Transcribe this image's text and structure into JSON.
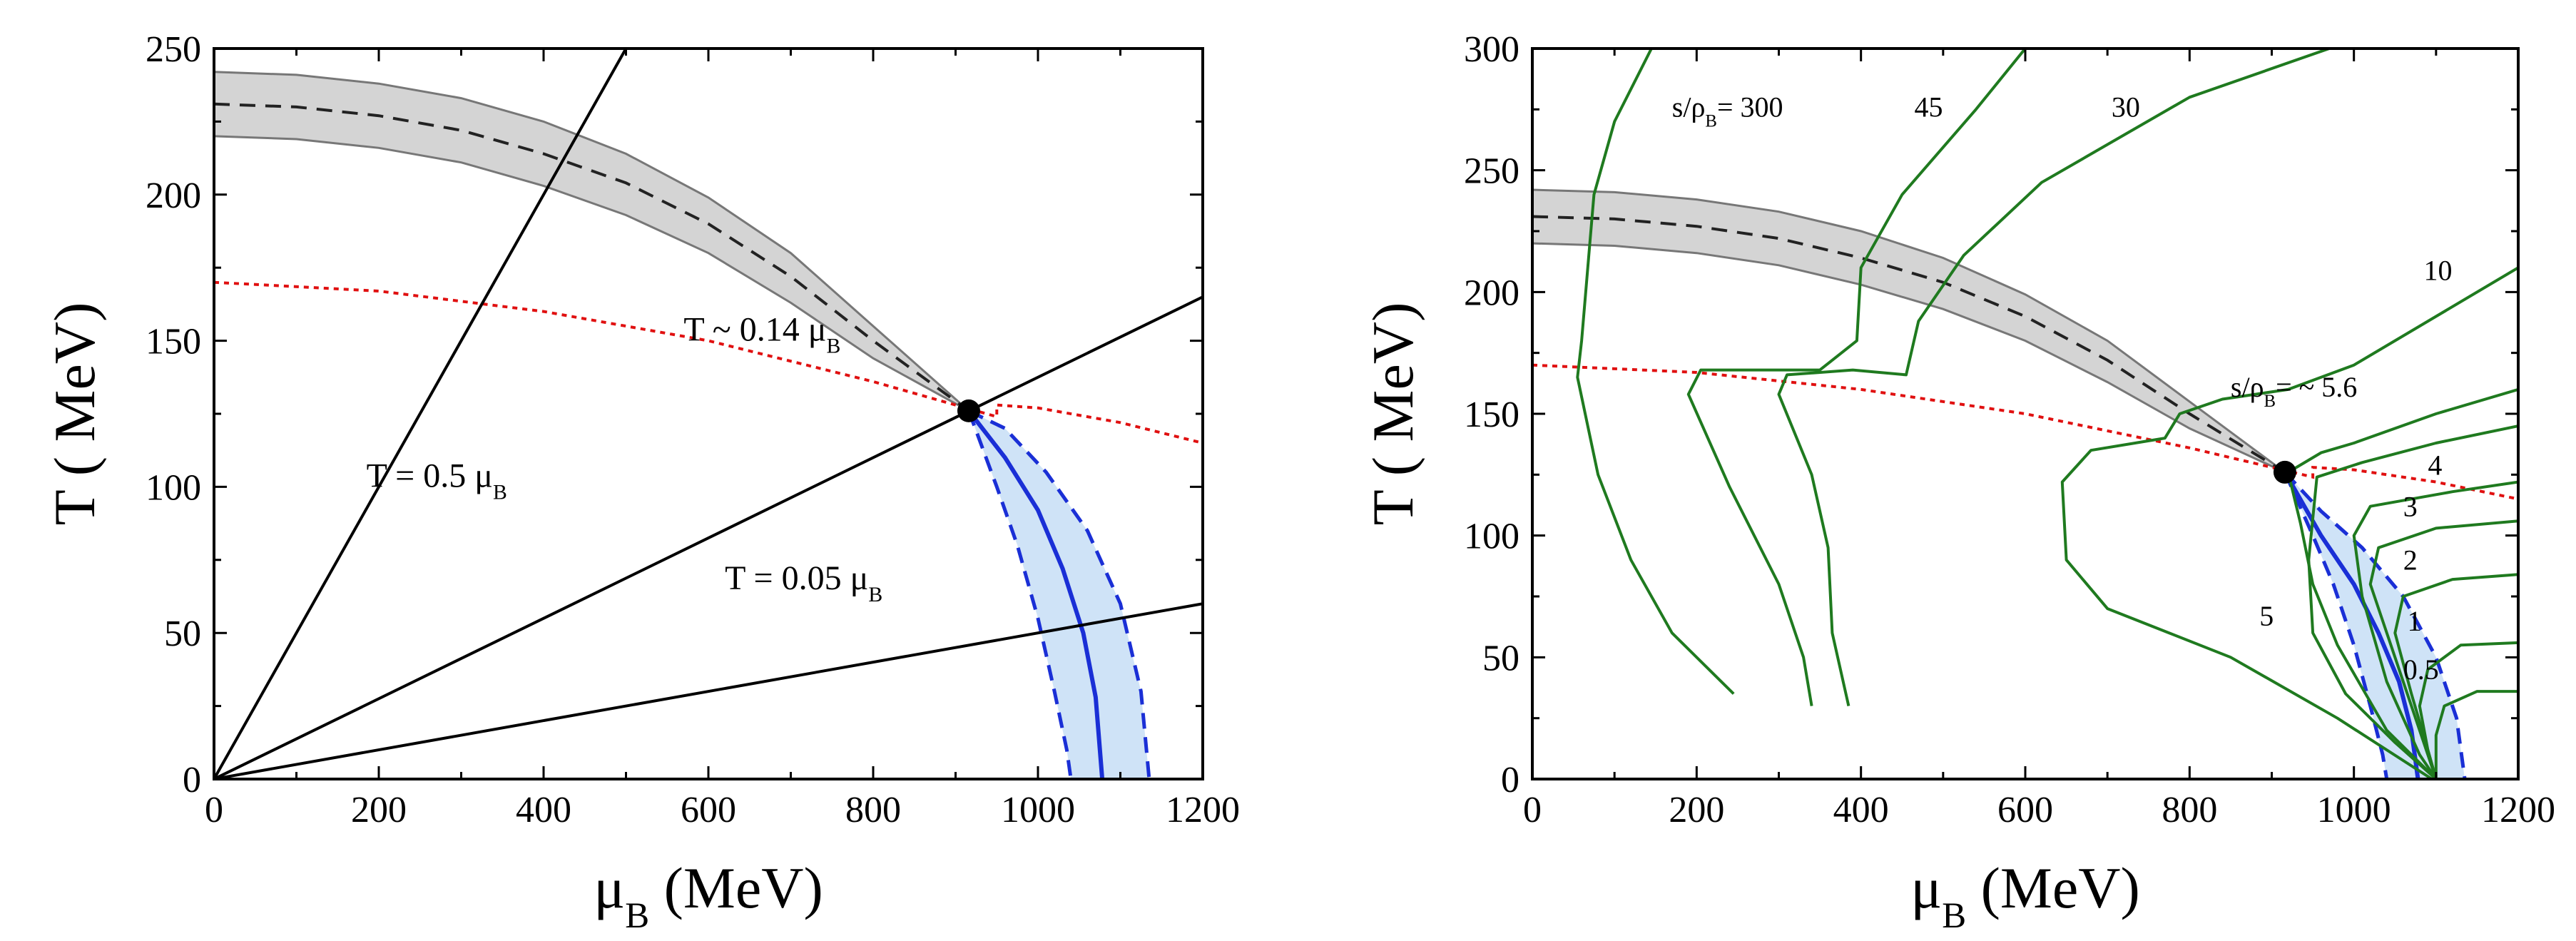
{
  "chart_data": [
    {
      "type": "line",
      "title": "",
      "xlabel": {
        "sym": "μ",
        "sub": "B",
        "unit": " (MeV)"
      },
      "ylabel": "T ( MeV)",
      "xlim": [
        0,
        1200
      ],
      "ylim": [
        0,
        250
      ],
      "xticks": [
        0,
        200,
        400,
        600,
        800,
        1000,
        1200
      ],
      "yticks": [
        0,
        50,
        100,
        150,
        200,
        250
      ],
      "grid": false,
      "critical_point": {
        "x": 916,
        "y": 126
      },
      "band": {
        "center": [
          [
            0,
            231
          ],
          [
            100,
            230
          ],
          [
            200,
            227
          ],
          [
            300,
            222
          ],
          [
            400,
            214
          ],
          [
            500,
            204
          ],
          [
            600,
            190
          ],
          [
            700,
            172
          ],
          [
            800,
            150
          ],
          [
            916,
            126
          ]
        ],
        "upper": [
          [
            0,
            242
          ],
          [
            100,
            241
          ],
          [
            200,
            238
          ],
          [
            300,
            233
          ],
          [
            400,
            225
          ],
          [
            500,
            214
          ],
          [
            600,
            199
          ],
          [
            700,
            180
          ],
          [
            800,
            155
          ],
          [
            916,
            126
          ]
        ],
        "lower": [
          [
            0,
            220
          ],
          [
            100,
            219
          ],
          [
            200,
            216
          ],
          [
            300,
            211
          ],
          [
            400,
            203
          ],
          [
            500,
            193
          ],
          [
            600,
            180
          ],
          [
            700,
            163
          ],
          [
            800,
            144
          ],
          [
            916,
            126
          ]
        ]
      },
      "red_dotted": [
        [
          0,
          170
        ],
        [
          200,
          167
        ],
        [
          400,
          160
        ],
        [
          600,
          150
        ],
        [
          800,
          136
        ],
        [
          900,
          128
        ],
        [
          950,
          124
        ],
        [
          950,
          128
        ],
        [
          1000,
          127
        ],
        [
          1100,
          122
        ],
        [
          1200,
          115
        ]
      ],
      "blue_region": {
        "center": [
          [
            916,
            126
          ],
          [
            960,
            110
          ],
          [
            1000,
            92
          ],
          [
            1030,
            72
          ],
          [
            1055,
            50
          ],
          [
            1070,
            28
          ],
          [
            1078,
            0
          ]
        ],
        "left": [
          [
            916,
            126
          ],
          [
            950,
            100
          ],
          [
            975,
            80
          ],
          [
            1000,
            55
          ],
          [
            1020,
            30
          ],
          [
            1035,
            10
          ],
          [
            1040,
            0
          ]
        ],
        "right": [
          [
            916,
            126
          ],
          [
            960,
            120
          ],
          [
            1010,
            105
          ],
          [
            1060,
            85
          ],
          [
            1100,
            60
          ],
          [
            1125,
            30
          ],
          [
            1135,
            0
          ]
        ]
      },
      "lines": [
        {
          "label": "T = 0.5 μ",
          "label_sub": "B",
          "slope": 0.5,
          "x_end": 500,
          "label_pos": [
            185,
            100
          ]
        },
        {
          "label": "T ~ 0.14 μ",
          "label_sub": "B",
          "slope": 0.1375,
          "x_end": 1200,
          "label_pos": [
            570,
            150
          ]
        },
        {
          "label": "T = 0.05 μ",
          "label_sub": "B",
          "slope": 0.05,
          "x_end": 1200,
          "label_pos": [
            620,
            65
          ]
        }
      ]
    },
    {
      "type": "line",
      "title": "",
      "xlabel": {
        "sym": "μ",
        "sub": "B",
        "unit": " (MeV)"
      },
      "ylabel": "T ( MeV)",
      "xlim": [
        0,
        1200
      ],
      "ylim": [
        0,
        300
      ],
      "xticks": [
        0,
        200,
        400,
        600,
        800,
        1000,
        1200
      ],
      "yticks": [
        0,
        50,
        100,
        150,
        200,
        250,
        300
      ],
      "grid": false,
      "critical_point": {
        "x": 916,
        "y": 126
      },
      "band": {
        "center": [
          [
            0,
            231
          ],
          [
            100,
            230
          ],
          [
            200,
            227
          ],
          [
            300,
            222
          ],
          [
            400,
            214
          ],
          [
            500,
            204
          ],
          [
            600,
            190
          ],
          [
            700,
            172
          ],
          [
            800,
            150
          ],
          [
            916,
            126
          ]
        ],
        "upper": [
          [
            0,
            242
          ],
          [
            100,
            241
          ],
          [
            200,
            238
          ],
          [
            300,
            233
          ],
          [
            400,
            225
          ],
          [
            500,
            214
          ],
          [
            600,
            199
          ],
          [
            700,
            180
          ],
          [
            800,
            155
          ],
          [
            916,
            126
          ]
        ],
        "lower": [
          [
            0,
            220
          ],
          [
            100,
            219
          ],
          [
            200,
            216
          ],
          [
            300,
            211
          ],
          [
            400,
            203
          ],
          [
            500,
            193
          ],
          [
            600,
            180
          ],
          [
            700,
            163
          ],
          [
            800,
            144
          ],
          [
            916,
            126
          ]
        ]
      },
      "red_dotted": [
        [
          0,
          170
        ],
        [
          200,
          167
        ],
        [
          400,
          160
        ],
        [
          600,
          150
        ],
        [
          800,
          136
        ],
        [
          900,
          128
        ],
        [
          950,
          124
        ],
        [
          950,
          128
        ],
        [
          1000,
          127
        ],
        [
          1100,
          122
        ],
        [
          1200,
          115
        ]
      ],
      "blue_region": {
        "center": [
          [
            916,
            126
          ],
          [
            960,
            100
          ],
          [
            1000,
            80
          ],
          [
            1030,
            60
          ],
          [
            1055,
            40
          ],
          [
            1070,
            20
          ],
          [
            1078,
            0
          ]
        ],
        "left": [
          [
            916,
            126
          ],
          [
            950,
            100
          ],
          [
            975,
            80
          ],
          [
            1000,
            55
          ],
          [
            1020,
            30
          ],
          [
            1035,
            10
          ],
          [
            1040,
            0
          ]
        ],
        "right": [
          [
            916,
            126
          ],
          [
            960,
            110
          ],
          [
            1010,
            95
          ],
          [
            1060,
            75
          ],
          [
            1100,
            50
          ],
          [
            1125,
            25
          ],
          [
            1135,
            0
          ]
        ]
      },
      "isentropes": [
        {
          "name": "300",
          "points": [
            [
              145,
              300
            ],
            [
              100,
              270
            ],
            [
              75,
              240
            ],
            [
              70,
              220
            ],
            [
              60,
              180
            ],
            [
              55,
              165
            ],
            [
              80,
              125
            ],
            [
              120,
              90
            ],
            [
              170,
              60
            ],
            [
              245,
              35
            ]
          ]
        },
        {
          "name": "45",
          "points": [
            [
              600,
              300
            ],
            [
              540,
              275
            ],
            [
              450,
              240
            ],
            [
              400,
              210
            ],
            [
              395,
              180
            ],
            [
              350,
              168
            ],
            [
              205,
              168
            ],
            [
              190,
              158
            ],
            [
              240,
              120
            ],
            [
              300,
              80
            ],
            [
              330,
              50
            ],
            [
              340,
              30
            ]
          ]
        },
        {
          "name": "30",
          "points": [
            [
              970,
              300
            ],
            [
              800,
              280
            ],
            [
              620,
              245
            ],
            [
              525,
              215
            ],
            [
              470,
              188
            ],
            [
              455,
              166
            ],
            [
              390,
              168
            ],
            [
              310,
              166
            ],
            [
              300,
              158
            ],
            [
              340,
              125
            ],
            [
              360,
              95
            ],
            [
              365,
              60
            ],
            [
              385,
              30
            ]
          ]
        },
        {
          "name": "10",
          "points": [
            [
              1200,
              210
            ],
            [
              1100,
              190
            ],
            [
              1000,
              170
            ],
            [
              920,
              160
            ],
            [
              840,
              156
            ],
            [
              788,
              150
            ],
            [
              770,
              140
            ],
            [
              680,
              135
            ],
            [
              645,
              122
            ],
            [
              650,
              90
            ],
            [
              700,
              70
            ],
            [
              850,
              50
            ],
            [
              980,
              25
            ],
            [
              1095,
              0
            ]
          ]
        },
        {
          "name": "5.6",
          "points": [
            [
              1200,
              160
            ],
            [
              1100,
              150
            ],
            [
              1000,
              138
            ],
            [
              960,
              134
            ],
            [
              930,
              128
            ],
            [
              920,
              126
            ],
            [
              935,
              105
            ],
            [
              950,
              80
            ],
            [
              980,
              55
            ],
            [
              1040,
              20
            ],
            [
              1100,
              0
            ]
          ]
        },
        {
          "name": "5",
          "points": [
            [
              1200,
              145
            ],
            [
              1100,
              138
            ],
            [
              1010,
              130
            ],
            [
              955,
              124
            ],
            [
              945,
              90
            ],
            [
              950,
              60
            ],
            [
              990,
              35
            ],
            [
              1050,
              15
            ],
            [
              1100,
              0
            ]
          ]
        },
        {
          "name": "4",
          "points": [
            [
              1200,
              122
            ],
            [
              1120,
              118
            ],
            [
              1020,
              112
            ],
            [
              1000,
              100
            ],
            [
              1010,
              75
            ],
            [
              1040,
              40
            ],
            [
              1080,
              10
            ],
            [
              1100,
              0
            ]
          ]
        },
        {
          "name": "3",
          "points": [
            [
              1200,
              106
            ],
            [
              1100,
              103
            ],
            [
              1030,
              95
            ],
            [
              1020,
              80
            ],
            [
              1050,
              50
            ],
            [
              1080,
              20
            ],
            [
              1100,
              0
            ]
          ]
        },
        {
          "name": "2",
          "points": [
            [
              1200,
              84
            ],
            [
              1120,
              82
            ],
            [
              1060,
              75
            ],
            [
              1050,
              60
            ],
            [
              1070,
              35
            ],
            [
              1090,
              12
            ],
            [
              1100,
              0
            ]
          ]
        },
        {
          "name": "1",
          "points": [
            [
              1200,
              56
            ],
            [
              1130,
              55
            ],
            [
              1090,
              45
            ],
            [
              1080,
              30
            ],
            [
              1090,
              12
            ],
            [
              1100,
              0
            ]
          ]
        },
        {
          "name": "0.5",
          "points": [
            [
              1200,
              36
            ],
            [
              1150,
              36
            ],
            [
              1110,
              30
            ],
            [
              1100,
              18
            ],
            [
              1100,
              0
            ]
          ]
        }
      ],
      "labels": [
        {
          "text": "s/ρ",
          "sub": "B",
          "rest": "= 300",
          "pos": [
            170,
            272
          ],
          "class": "annot-sm"
        },
        {
          "text": "45",
          "pos": [
            465,
            272
          ],
          "class": "annot-sm"
        },
        {
          "text": "30",
          "pos": [
            705,
            272
          ],
          "class": "annot-sm"
        },
        {
          "text": "10",
          "pos": [
            1085,
            205
          ],
          "class": "annot-sm"
        },
        {
          "text": "s/ρ",
          "sub": "B",
          "rest": "= ~ 5.6",
          "pos": [
            850,
            157
          ],
          "class": "annot-sm",
          "color": "#1a7a1a"
        },
        {
          "text": "4",
          "pos": [
            1090,
            125
          ],
          "class": "annot-sm"
        },
        {
          "text": "3",
          "pos": [
            1060,
            108
          ],
          "class": "annot-sm"
        },
        {
          "text": "2",
          "pos": [
            1060,
            86
          ],
          "class": "annot-sm"
        },
        {
          "text": "5",
          "pos": [
            885,
            63
          ],
          "class": "annot-sm"
        },
        {
          "text": "1",
          "pos": [
            1065,
            61
          ],
          "class": "annot-sm"
        },
        {
          "text": "0.5",
          "pos": [
            1060,
            41
          ],
          "class": "annot-sm"
        }
      ]
    }
  ]
}
